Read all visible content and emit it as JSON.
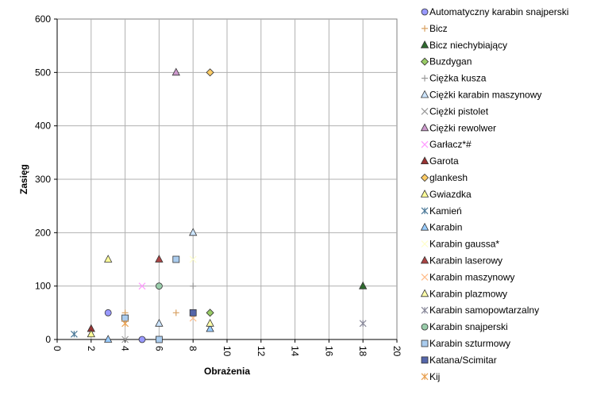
{
  "chart_data": {
    "type": "scatter",
    "xlabel": "Obrażenia",
    "ylabel": "Zasięg",
    "xlim": [
      0,
      20
    ],
    "ylim": [
      0,
      600
    ],
    "x_ticks": [
      0,
      2,
      4,
      6,
      8,
      10,
      12,
      14,
      16,
      18,
      20
    ],
    "y_ticks": [
      0,
      100,
      200,
      300,
      400,
      500,
      600
    ],
    "grid": "both",
    "legend_position": "right",
    "series": [
      {
        "name": "Automatyczny karabin snajperski",
        "marker": "circle",
        "color": "#9999FF",
        "points": [
          [
            3,
            50
          ],
          [
            5,
            0
          ]
        ]
      },
      {
        "name": "Bicz",
        "marker": "plus",
        "color": "#D8A060",
        "points": [
          [
            7,
            50
          ],
          [
            4,
            50
          ]
        ]
      },
      {
        "name": "Bicz niechybiający",
        "marker": "triangle",
        "color": "#2E6B2E",
        "points": [
          [
            18,
            100
          ]
        ]
      },
      {
        "name": "Buzdygan",
        "marker": "diamond",
        "color": "#99CC66",
        "points": [
          [
            9,
            50
          ]
        ]
      },
      {
        "name": "Ciężka kusza",
        "marker": "plus",
        "color": "#999999",
        "points": [
          [
            8,
            100
          ]
        ]
      },
      {
        "name": "Ciężki karabin maszynowy",
        "marker": "triangle",
        "color": "#CCE5FF",
        "points": [
          [
            8,
            200
          ],
          [
            6,
            30
          ]
        ]
      },
      {
        "name": "Ciężki pistolet",
        "marker": "x",
        "color": "#999999",
        "points": [
          [
            4,
            0
          ]
        ]
      },
      {
        "name": "Ciężki rewolwer",
        "marker": "triangle",
        "color": "#CC99CC",
        "points": [
          [
            7,
            500
          ]
        ]
      },
      {
        "name": "Garłacz*#",
        "marker": "x",
        "color": "#FF99FF",
        "points": [
          [
            5,
            100
          ]
        ]
      },
      {
        "name": "Garota",
        "marker": "triangle",
        "color": "#993333",
        "points": [
          [
            2,
            20
          ]
        ]
      },
      {
        "name": "glankesh",
        "marker": "diamond",
        "color": "#FFCC66",
        "points": [
          [
            9,
            500
          ]
        ]
      },
      {
        "name": "Gwiazdka",
        "marker": "triangle",
        "color": "#FFFF99",
        "points": [
          [
            3,
            150
          ],
          [
            2,
            10
          ]
        ]
      },
      {
        "name": "Kamień",
        "marker": "asterisk",
        "color": "#4D7A99",
        "points": [
          [
            1,
            10
          ]
        ]
      },
      {
        "name": "Karabin",
        "marker": "triangle",
        "color": "#99CCFF",
        "points": [
          [
            9,
            20
          ],
          [
            3,
            0
          ]
        ]
      },
      {
        "name": "Karabin gaussa*",
        "marker": "x",
        "color": "#FFFFCC",
        "points": [
          [
            8,
            150
          ]
        ]
      },
      {
        "name": "Karabin laserowy",
        "marker": "triangle",
        "color": "#AA4444",
        "points": [
          [
            6,
            150
          ]
        ]
      },
      {
        "name": "Karabin maszynowy",
        "marker": "x",
        "color": "#FFBB88",
        "points": [
          [
            8,
            40
          ]
        ]
      },
      {
        "name": "Karabin plazmowy",
        "marker": "triangle",
        "color": "#FFFFAA",
        "points": [
          [
            9,
            30
          ]
        ]
      },
      {
        "name": "Karabin samopowtarzalny",
        "marker": "asterisk",
        "color": "#888899",
        "points": [
          [
            18,
            30
          ]
        ]
      },
      {
        "name": "Karabin snajperski",
        "marker": "circle",
        "color": "#99CCAA",
        "points": [
          [
            6,
            100
          ]
        ]
      },
      {
        "name": "Karabin szturmowy",
        "marker": "square",
        "color": "#AACCEE",
        "points": [
          [
            7,
            150
          ],
          [
            4,
            40
          ],
          [
            6,
            0
          ]
        ]
      },
      {
        "name": "Katana/Scimitar",
        "marker": "square",
        "color": "#5566AA",
        "points": [
          [
            8,
            50
          ]
        ]
      },
      {
        "name": "Kij",
        "marker": "asterisk",
        "color": "#E8A050",
        "points": [
          [
            4,
            30
          ]
        ]
      }
    ]
  }
}
